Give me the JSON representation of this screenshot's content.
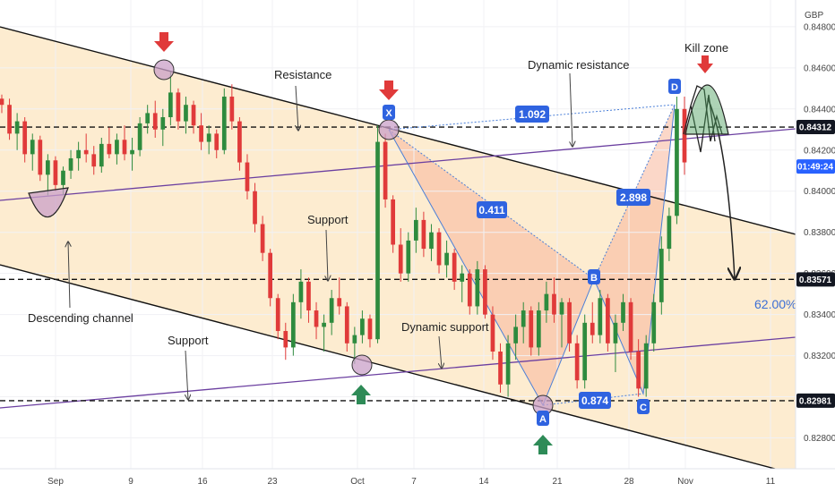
{
  "chart_data": {
    "type": "candlestick",
    "currency": "GBP",
    "x_ticks": [
      "Sep",
      "9",
      "16",
      "23",
      "Oct",
      "7",
      "14",
      "21",
      "28",
      "Nov",
      "11"
    ],
    "y_ticks": [
      "0.84800",
      "0.84600",
      "0.84400",
      "0.84200",
      "0.84000",
      "0.83800",
      "0.83600",
      "0.83400",
      "0.83200",
      "0.83000",
      "0.82800"
    ],
    "ylim": [
      0.8265,
      0.8493
    ],
    "price_labels": [
      {
        "text": "0.84312",
        "value": 0.84312,
        "style": "dark"
      },
      {
        "text": "01:49:24",
        "value": 0.8412,
        "style": "blue"
      },
      {
        "text": "0.83571",
        "value": 0.83571,
        "style": "dark"
      },
      {
        "text": "0.82981",
        "value": 0.82981,
        "style": "dark"
      }
    ],
    "horizontal_levels": [
      0.84312,
      0.83571,
      0.82981
    ],
    "annotations": {
      "kill_zone": "Kill zone",
      "resistance": "Resistance",
      "dynamic_resistance": "Dynamic resistance",
      "support_mid": "Support",
      "descending_channel": "Descending channel",
      "support_low": "Support",
      "dynamic_support": "Dynamic support",
      "percent": "62.00%"
    },
    "pattern_points": [
      {
        "label": "X",
        "x": 0.8435
      },
      {
        "label": "A",
        "x": 0.8296
      },
      {
        "label": "B",
        "x": 0.8358
      },
      {
        "label": "C",
        "x": 0.8303
      },
      {
        "label": "D",
        "x": 0.8446
      }
    ],
    "ratios": [
      "1.092",
      "0.411",
      "2.898",
      "0.874"
    ],
    "candles": [
      [
        0.8445,
        0.8447,
        0.8438,
        0.8442
      ],
      [
        0.8442,
        0.8445,
        0.8425,
        0.8428
      ],
      [
        0.8428,
        0.8438,
        0.842,
        0.8434
      ],
      [
        0.8434,
        0.8436,
        0.8414,
        0.8418
      ],
      [
        0.8418,
        0.8428,
        0.841,
        0.8425
      ],
      [
        0.8425,
        0.8427,
        0.8405,
        0.8408
      ],
      [
        0.8408,
        0.8418,
        0.8398,
        0.8415
      ],
      [
        0.8415,
        0.8417,
        0.84,
        0.8403
      ],
      [
        0.8403,
        0.8412,
        0.8398,
        0.841
      ],
      [
        0.841,
        0.842,
        0.8406,
        0.8416
      ],
      [
        0.8416,
        0.8424,
        0.841,
        0.842
      ],
      [
        0.842,
        0.8428,
        0.8414,
        0.8418
      ],
      [
        0.8418,
        0.8422,
        0.8408,
        0.8412
      ],
      [
        0.8412,
        0.8426,
        0.8409,
        0.8423
      ],
      [
        0.8423,
        0.8431,
        0.8416,
        0.8418
      ],
      [
        0.8418,
        0.8428,
        0.8413,
        0.8425
      ],
      [
        0.8425,
        0.8432,
        0.8415,
        0.8418
      ],
      [
        0.8418,
        0.8426,
        0.841,
        0.842
      ],
      [
        0.842,
        0.8436,
        0.8417,
        0.8433
      ],
      [
        0.8433,
        0.8442,
        0.8428,
        0.8438
      ],
      [
        0.8438,
        0.8444,
        0.8426,
        0.843
      ],
      [
        0.843,
        0.844,
        0.8422,
        0.8436
      ],
      [
        0.8436,
        0.8458,
        0.8432,
        0.8448
      ],
      [
        0.8448,
        0.845,
        0.843,
        0.8434
      ],
      [
        0.8434,
        0.8446,
        0.8428,
        0.8442
      ],
      [
        0.8442,
        0.8444,
        0.8428,
        0.8432
      ],
      [
        0.8432,
        0.8438,
        0.842,
        0.8424
      ],
      [
        0.8424,
        0.8432,
        0.8418,
        0.8428
      ],
      [
        0.8428,
        0.843,
        0.8416,
        0.842
      ],
      [
        0.842,
        0.845,
        0.8418,
        0.8446
      ],
      [
        0.8446,
        0.8452,
        0.843,
        0.8434
      ],
      [
        0.8434,
        0.8436,
        0.841,
        0.8414
      ],
      [
        0.8414,
        0.8418,
        0.8396,
        0.84
      ],
      [
        0.84,
        0.8404,
        0.838,
        0.8384
      ],
      [
        0.8384,
        0.8388,
        0.8366,
        0.837
      ],
      [
        0.837,
        0.8372,
        0.8344,
        0.8348
      ],
      [
        0.8348,
        0.835,
        0.8328,
        0.8332
      ],
      [
        0.8332,
        0.8336,
        0.8318,
        0.8324
      ],
      [
        0.8324,
        0.835,
        0.832,
        0.8346
      ],
      [
        0.8346,
        0.8362,
        0.8338,
        0.8356
      ],
      [
        0.8356,
        0.8358,
        0.8336,
        0.8342
      ],
      [
        0.8342,
        0.8346,
        0.8328,
        0.8334
      ],
      [
        0.8334,
        0.834,
        0.8322,
        0.8336
      ],
      [
        0.8336,
        0.8352,
        0.833,
        0.8348
      ],
      [
        0.8348,
        0.8358,
        0.834,
        0.8344
      ],
      [
        0.8344,
        0.8346,
        0.8322,
        0.8326
      ],
      [
        0.8326,
        0.8334,
        0.8316,
        0.833
      ],
      [
        0.833,
        0.8342,
        0.8326,
        0.8338
      ],
      [
        0.8338,
        0.834,
        0.8324,
        0.8328
      ],
      [
        0.8328,
        0.8432,
        0.8326,
        0.8424
      ],
      [
        0.8424,
        0.8428,
        0.8392,
        0.8396
      ],
      [
        0.8396,
        0.8398,
        0.837,
        0.8374
      ],
      [
        0.8374,
        0.8382,
        0.8356,
        0.836
      ],
      [
        0.836,
        0.838,
        0.8356,
        0.8376
      ],
      [
        0.8376,
        0.8392,
        0.837,
        0.8386
      ],
      [
        0.8386,
        0.839,
        0.8368,
        0.8372
      ],
      [
        0.8372,
        0.8384,
        0.8366,
        0.838
      ],
      [
        0.838,
        0.8382,
        0.836,
        0.8364
      ],
      [
        0.8364,
        0.8376,
        0.8358,
        0.837
      ],
      [
        0.837,
        0.8372,
        0.8352,
        0.8356
      ],
      [
        0.8356,
        0.8364,
        0.8346,
        0.836
      ],
      [
        0.836,
        0.8362,
        0.834,
        0.8344
      ],
      [
        0.8344,
        0.8366,
        0.834,
        0.8362
      ],
      [
        0.8362,
        0.8364,
        0.8338,
        0.834
      ],
      [
        0.834,
        0.8344,
        0.8318,
        0.8322
      ],
      [
        0.8322,
        0.8326,
        0.8302,
        0.8306
      ],
      [
        0.8306,
        0.833,
        0.83,
        0.8326
      ],
      [
        0.8326,
        0.834,
        0.8318,
        0.8334
      ],
      [
        0.8334,
        0.8346,
        0.8326,
        0.8342
      ],
      [
        0.8342,
        0.8344,
        0.832,
        0.8324
      ],
      [
        0.8324,
        0.8346,
        0.832,
        0.8342
      ],
      [
        0.8342,
        0.8356,
        0.8336,
        0.835
      ],
      [
        0.835,
        0.8358,
        0.8336,
        0.834
      ],
      [
        0.834,
        0.8348,
        0.8324,
        0.8346
      ],
      [
        0.8346,
        0.8348,
        0.8322,
        0.8326
      ],
      [
        0.8326,
        0.833,
        0.8304,
        0.8308
      ],
      [
        0.8308,
        0.834,
        0.8304,
        0.8336
      ],
      [
        0.8336,
        0.8346,
        0.8326,
        0.833
      ],
      [
        0.833,
        0.8352,
        0.8326,
        0.8348
      ],
      [
        0.8348,
        0.835,
        0.8322,
        0.8326
      ],
      [
        0.8326,
        0.834,
        0.8312,
        0.8336
      ],
      [
        0.8336,
        0.835,
        0.8332,
        0.8346
      ],
      [
        0.8346,
        0.8348,
        0.8318,
        0.8322
      ],
      [
        0.8322,
        0.8328,
        0.83,
        0.8304
      ],
      [
        0.8304,
        0.833,
        0.83,
        0.8326
      ],
      [
        0.8326,
        0.835,
        0.8322,
        0.8346
      ],
      [
        0.8346,
        0.8378,
        0.834,
        0.8372
      ],
      [
        0.8372,
        0.8392,
        0.8366,
        0.8388
      ],
      [
        0.8388,
        0.8446,
        0.8384,
        0.844
      ],
      [
        0.844,
        0.8446,
        0.8408,
        0.8414
      ]
    ]
  }
}
